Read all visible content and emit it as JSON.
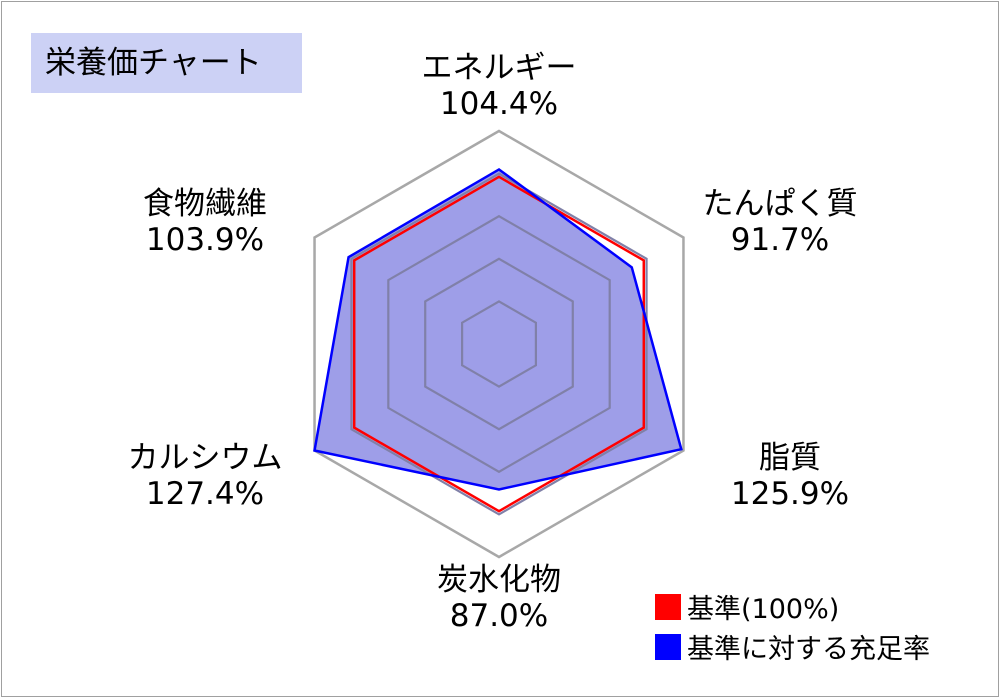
{
  "chart_data": {
    "type": "radar",
    "title": "栄養価チャート",
    "axes": [
      {
        "name": "エネルギー",
        "value_label": "104.4%",
        "value": 104.4
      },
      {
        "name": "たんぱく質",
        "value_label": "91.7%",
        "value": 91.7
      },
      {
        "name": "脂質",
        "value_label": "125.9%",
        "value": 125.9
      },
      {
        "name": "炭水化物",
        "value_label": "87.0%",
        "value": 87.0
      },
      {
        "name": "カルシウム",
        "value_label": "127.4%",
        "value": 127.4
      },
      {
        "name": "食物繊維",
        "value_label": "103.9%",
        "value": 103.9
      }
    ],
    "rmax": 127.4,
    "grid": true,
    "series": [
      {
        "name": "基準(100%)",
        "color": "#ff0000",
        "values": [
          100,
          100,
          100,
          100,
          100,
          100
        ]
      },
      {
        "name": "基準に対する充足率",
        "color": "#0000ff",
        "fill": "#9e9ee8",
        "values": [
          104.4,
          91.7,
          125.9,
          87.0,
          127.4,
          103.9
        ]
      }
    ],
    "legend_position": "bottom-right"
  }
}
